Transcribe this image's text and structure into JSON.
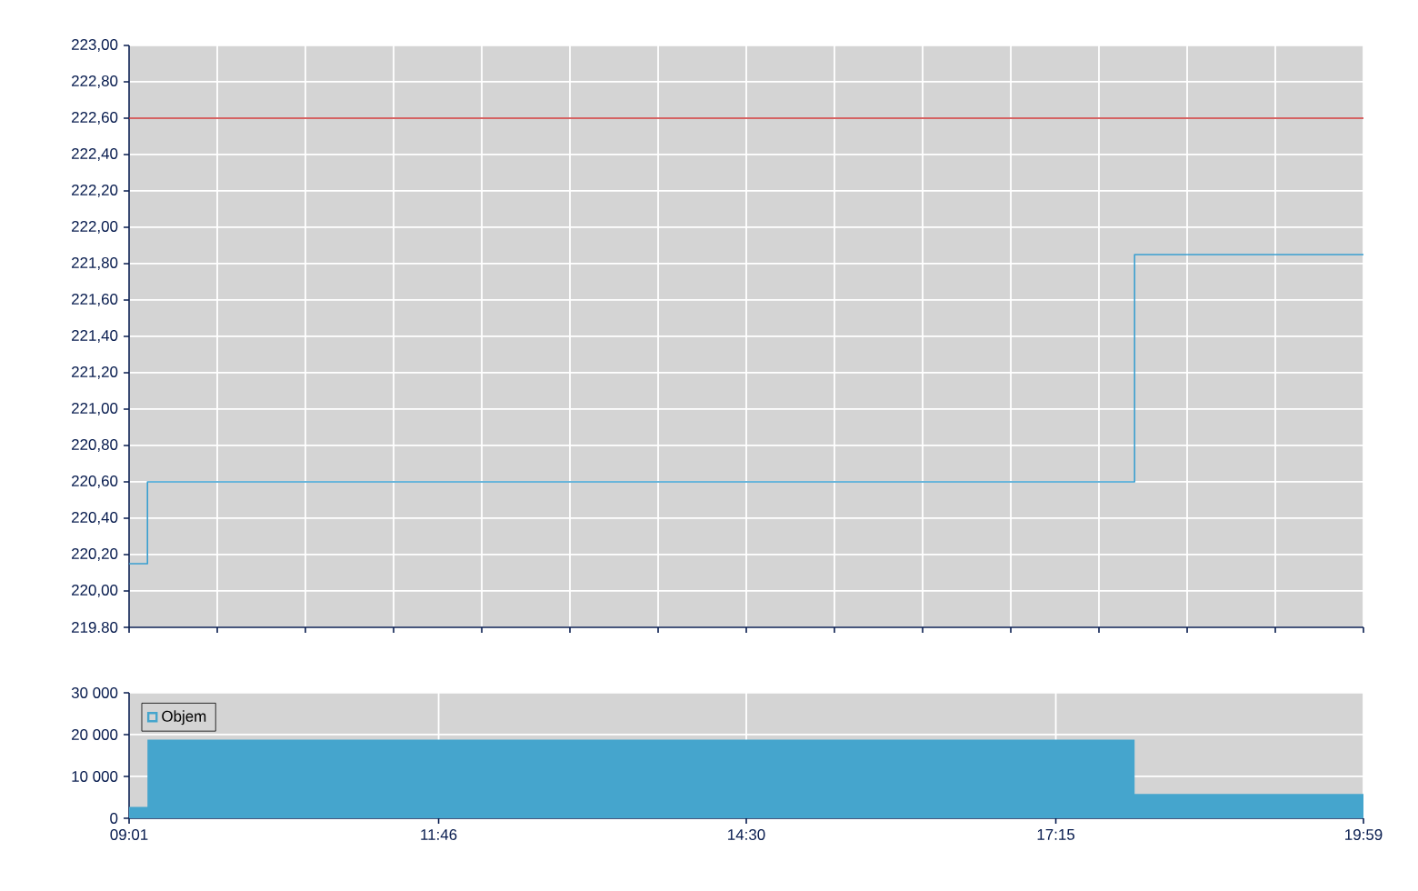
{
  "chart_data": [
    {
      "type": "step",
      "x": [
        9.0167,
        9.18,
        17.95,
        19.9833
      ],
      "series": [
        {
          "color": "#3a9fd0",
          "values": [
            220.15,
            220.6,
            221.85,
            221.85
          ]
        }
      ],
      "xlim": [
        9.0167,
        19.9833
      ],
      "xticks": [
        {
          "value": 9.0167,
          "label": null
        },
        {
          "value": 9.8,
          "label": null
        },
        {
          "value": 10.5833,
          "label": null
        },
        {
          "value": 11.3667,
          "label": null
        },
        {
          "value": 12.15,
          "label": null
        },
        {
          "value": 12.9333,
          "label": null
        },
        {
          "value": 13.7167,
          "label": null
        },
        {
          "value": 14.5,
          "label": null
        },
        {
          "value": 15.2833,
          "label": null
        },
        {
          "value": 16.0667,
          "label": null
        },
        {
          "value": 16.85,
          "label": null
        },
        {
          "value": 17.6333,
          "label": null
        },
        {
          "value": 18.4167,
          "label": null
        },
        {
          "value": 19.2,
          "label": null
        },
        {
          "value": 19.9833,
          "label": null
        }
      ],
      "ylim": [
        219.8,
        223.0
      ],
      "yticks": [
        {
          "value": 219.8,
          "label": "219.80"
        },
        {
          "value": 220.0,
          "label": "220,00"
        },
        {
          "value": 220.2,
          "label": "220,20"
        },
        {
          "value": 220.4,
          "label": "220,40"
        },
        {
          "value": 220.6,
          "label": "220,60"
        },
        {
          "value": 220.8,
          "label": "220,80"
        },
        {
          "value": 221.0,
          "label": "221,00"
        },
        {
          "value": 221.2,
          "label": "221,20"
        },
        {
          "value": 221.4,
          "label": "221,40"
        },
        {
          "value": 221.6,
          "label": "221,60"
        },
        {
          "value": 221.8,
          "label": "221,80"
        },
        {
          "value": 222.0,
          "label": "222,00"
        },
        {
          "value": 222.2,
          "label": "222,20"
        },
        {
          "value": 222.4,
          "label": "222,40"
        },
        {
          "value": 222.6,
          "label": "222,60"
        },
        {
          "value": 222.8,
          "label": "222,80"
        },
        {
          "value": 223.0,
          "label": "223,00"
        }
      ],
      "ref_lines": [
        {
          "axis": "y",
          "value": 222.6,
          "color": "#c83232"
        }
      ],
      "grid": true,
      "tick_labels": "y",
      "legend": false
    },
    {
      "type": "area",
      "x": [
        9.0167,
        9.18,
        17.95,
        19.9833
      ],
      "series": [
        {
          "name": "Objem",
          "color": "#45a5cd",
          "values": [
            2700,
            18800,
            5800,
            5800
          ]
        }
      ],
      "xlim": [
        9.0167,
        19.9833
      ],
      "xticks": [
        {
          "value": 9.0167,
          "label": "09:01"
        },
        {
          "value": 11.7667,
          "label": "11:46"
        },
        {
          "value": 14.5,
          "label": "14:30"
        },
        {
          "value": 17.25,
          "label": "17:15"
        },
        {
          "value": 19.9833,
          "label": "19:59"
        }
      ],
      "ylim": [
        0,
        30000
      ],
      "yticks": [
        0,
        {
          "value": 10000,
          "label": "10 000"
        },
        {
          "value": 20000,
          "label": "20 000"
        },
        {
          "value": 30000,
          "label": "30 000"
        }
      ],
      "grid": true,
      "legend": "top left"
    }
  ]
}
